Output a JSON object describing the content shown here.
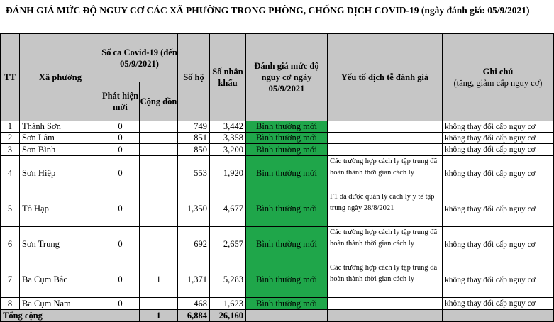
{
  "title": "ĐÁNH GIÁ MỨC ĐỘ NGUY CƠ CÁC XÃ PHƯỜNG TRONG PHÒNG, CHỐNG DỊCH COVID-19  (ngày đánh giá: 05/9/2021)",
  "headers": {
    "tt": "TT",
    "ward": "Xã phường",
    "cases_group": "Số ca Covid-19 (đến 05/9/2021)",
    "new_cases": "Phát hiện mới",
    "cumulative": "Cộng dồn",
    "households": "Số hộ",
    "population": "Số nhân khẩu",
    "risk": "Đánh giá mức độ nguy cơ ngày 05/9/2021",
    "factors": "Yếu tố dịch tễ đánh giá",
    "note_title": "Ghi chú",
    "note_sub": "(tăng, giảm cấp nguy cơ)"
  },
  "rows": [
    {
      "tt": "1",
      "ward": "Thành Sơn",
      "new": "0",
      "cum": "",
      "households": "749",
      "population": "3,442",
      "risk": "Bình thường mới",
      "factor": "",
      "note": "không thay đổi cấp nguy cơ"
    },
    {
      "tt": "2",
      "ward": "Sơn Lâm",
      "new": "0",
      "cum": "",
      "households": "851",
      "population": "3,358",
      "risk": "Bình thường mới",
      "factor": "",
      "note": "không thay đổi cấp nguy cơ"
    },
    {
      "tt": "3",
      "ward": "Sơn Bình",
      "new": "0",
      "cum": "",
      "households": "850",
      "population": "3,200",
      "risk": "Bình thường mới",
      "factor": "",
      "note": "không thay đổi cấp nguy cơ"
    },
    {
      "tt": "4",
      "ward": "Sơn Hiệp",
      "new": "0",
      "cum": "",
      "households": "553",
      "population": "1,920",
      "risk": "Bình thường mới",
      "factor": "Các trường hợp cách ly tập trung đã hoàn thành thời gian cách ly",
      "note": "không thay đổi cấp nguy cơ"
    },
    {
      "tt": "5",
      "ward": "Tô Hạp",
      "new": "0",
      "cum": "",
      "households": "1,350",
      "population": "4,677",
      "risk": "Bình thường mới",
      "factor": "F1 đã được quản lý cách ly y tế tập trung ngày 28/8/2021",
      "note": "không thay đổi cấp nguy cơ"
    },
    {
      "tt": "6",
      "ward": "Sơn Trung",
      "new": "0",
      "cum": "",
      "households": "692",
      "population": "2,657",
      "risk": "Bình thường mới",
      "factor": "Các trường hợp cách ly tập trung đã hoàn thành thời gian cách ly",
      "note": "không thay đổi cấp nguy cơ"
    },
    {
      "tt": "7",
      "ward": "Ba Cụm Bắc",
      "new": "0",
      "cum": "1",
      "households": "1,371",
      "population": "5,283",
      "risk": "Bình thường mới",
      "factor": "Các trường hợp cách ly tập trung đã hoàn thành thời gian cách ly",
      "note": "không thay đổi cấp nguy cơ"
    },
    {
      "tt": "8",
      "ward": "Ba Cụm Nam",
      "new": "0",
      "cum": "",
      "households": "468",
      "population": "1,623",
      "risk": "Bình thường mới",
      "factor": "",
      "note": "không thay đổi cấp nguy cơ"
    }
  ],
  "total": {
    "label": "Tổng cộng",
    "new": "",
    "cum": "1",
    "households": "6,884",
    "population": "26,160"
  },
  "colors": {
    "risk_green": "#1fa64a",
    "header_gray": "#c6c6c6"
  }
}
